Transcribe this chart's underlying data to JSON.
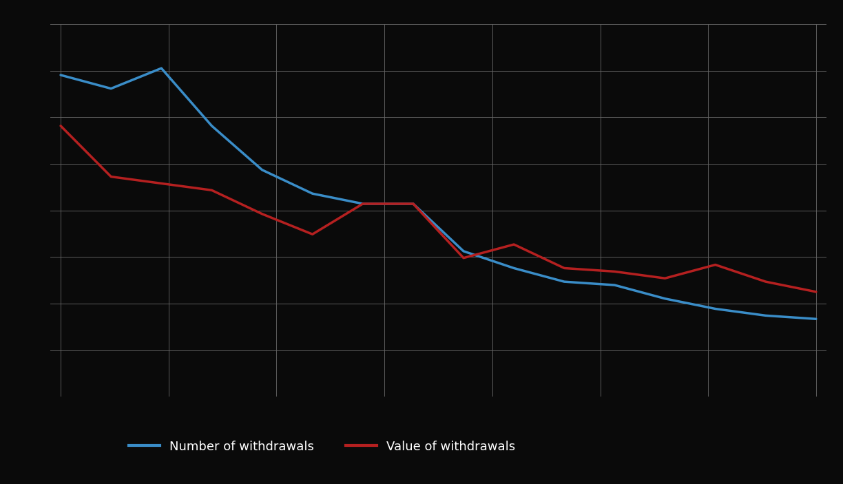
{
  "blue_y": [
    95,
    91,
    97,
    80,
    67,
    60,
    57,
    57,
    43,
    38,
    34,
    33,
    29,
    26,
    24,
    23
  ],
  "red_y": [
    80,
    65,
    63,
    61,
    54,
    48,
    57,
    57,
    41,
    45,
    38,
    37,
    35,
    39,
    34,
    31
  ],
  "x": [
    0,
    1,
    2,
    3,
    4,
    5,
    6,
    7,
    8,
    9,
    10,
    11,
    12,
    13,
    14,
    15
  ],
  "blue_color": "#3a8dc8",
  "red_color": "#b52020",
  "background_color": "#0a0a0a",
  "grid_color": "#666666",
  "legend_blue_label": "Number of withdrawals",
  "legend_red_label": "Value of withdrawals",
  "figsize": [
    12.24,
    7.03
  ],
  "dpi": 100,
  "ylim": [
    0,
    110
  ],
  "xlim": [
    -0.2,
    15.2
  ],
  "y_grid_count": 9
}
